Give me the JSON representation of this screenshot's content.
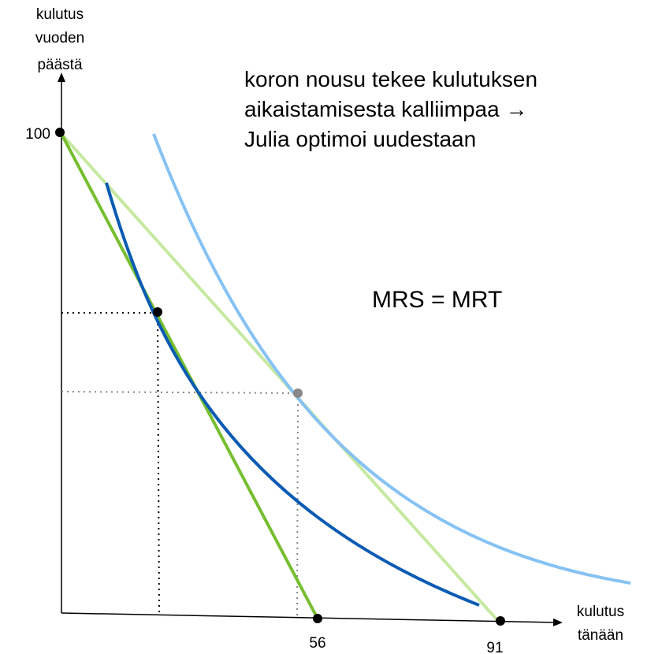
{
  "y_axis_label": [
    "kulutus",
    "vuoden",
    "päästä"
  ],
  "x_axis_label": [
    "kulutus",
    "tänään"
  ],
  "y_intercept_label": "100",
  "x_intercept_labels": [
    "56",
    "91"
  ],
  "annotation": [
    "koron nousu tekee kulutuksen",
    "aikaistamisesta kalliimpaa →",
    "Julia optimoi uudestaan"
  ],
  "condition": "MRS = MRT"
}
